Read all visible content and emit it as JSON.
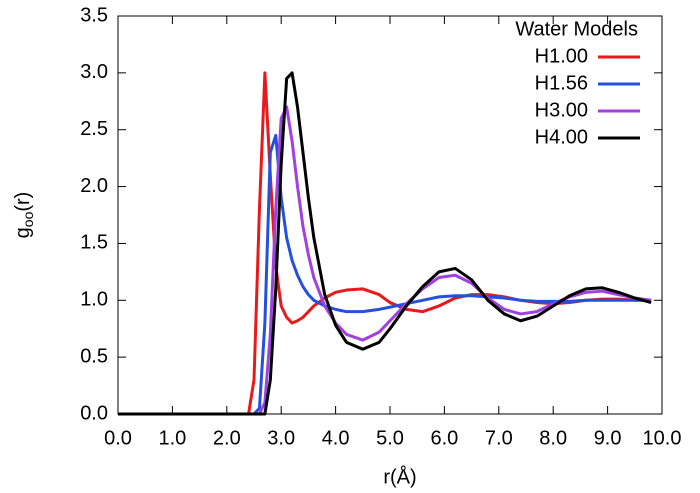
{
  "chart_data": {
    "type": "line",
    "xlabel": "r(Å)",
    "ylabel": [
      "g",
      "oo",
      "(r)"
    ],
    "legend_title": "Water Models",
    "legend": "top-right",
    "grid": false,
    "x": [
      0,
      2.3,
      2.4,
      2.5,
      2.6,
      2.7,
      2.8,
      2.9,
      3.0,
      3.1,
      3.2,
      3.3,
      3.4,
      3.5,
      3.6,
      3.8,
      4.0,
      4.2,
      4.5,
      4.8,
      5.0,
      5.3,
      5.6,
      5.9,
      6.2,
      6.5,
      6.8,
      7.1,
      7.4,
      7.7,
      8.0,
      8.3,
      8.6,
      8.9,
      9.2,
      9.5,
      9.8
    ],
    "series": [
      {
        "name": "H1.00",
        "color": "#e8191b",
        "values": [
          0,
          0,
          0,
          0.3,
          1.8,
          3.0,
          2.1,
          1.3,
          0.95,
          0.85,
          0.8,
          0.82,
          0.85,
          0.9,
          0.95,
          1.02,
          1.07,
          1.09,
          1.1,
          1.05,
          0.98,
          0.92,
          0.9,
          0.95,
          1.02,
          1.05,
          1.05,
          1.03,
          1.0,
          0.98,
          0.97,
          0.98,
          1.0,
          1.01,
          1.01,
          1.0,
          1.0
        ]
      },
      {
        "name": "H1.56",
        "color": "#2450e0",
        "values": [
          0,
          0,
          0,
          0,
          0.05,
          0.8,
          2.3,
          2.45,
          1.9,
          1.55,
          1.35,
          1.22,
          1.12,
          1.05,
          1.0,
          0.95,
          0.92,
          0.9,
          0.9,
          0.92,
          0.94,
          0.97,
          1.0,
          1.03,
          1.04,
          1.04,
          1.03,
          1.02,
          1.0,
          0.99,
          0.99,
          0.99,
          1.0,
          1.0,
          1.0,
          1.0,
          1.0
        ]
      },
      {
        "name": "H3.00",
        "color": "#a040e0",
        "values": [
          0,
          0,
          0,
          0,
          0,
          0.1,
          0.7,
          1.8,
          2.6,
          2.7,
          2.4,
          2.0,
          1.65,
          1.4,
          1.2,
          0.95,
          0.8,
          0.7,
          0.65,
          0.72,
          0.82,
          0.97,
          1.1,
          1.2,
          1.22,
          1.15,
          1.02,
          0.92,
          0.88,
          0.9,
          0.97,
          1.03,
          1.07,
          1.08,
          1.05,
          1.02,
          1.0
        ]
      },
      {
        "name": "H4.00",
        "color": "#000000",
        "values": [
          0,
          0,
          0,
          0,
          0,
          0,
          0.3,
          1.1,
          2.2,
          2.95,
          3.0,
          2.7,
          2.3,
          1.9,
          1.55,
          1.05,
          0.78,
          0.63,
          0.57,
          0.63,
          0.75,
          0.95,
          1.12,
          1.25,
          1.28,
          1.18,
          1.0,
          0.88,
          0.82,
          0.86,
          0.95,
          1.04,
          1.1,
          1.11,
          1.07,
          1.02,
          0.98
        ]
      }
    ],
    "xlim": [
      0,
      10
    ],
    "xticks": [
      {
        "value": 0,
        "label": "0.0"
      },
      {
        "value": 1,
        "label": "1.0"
      },
      {
        "value": 2,
        "label": "2.0"
      },
      {
        "value": 3,
        "label": "3.0"
      },
      {
        "value": 4,
        "label": "4.0"
      },
      {
        "value": 5,
        "label": "5.0"
      },
      {
        "value": 6,
        "label": "6.0"
      },
      {
        "value": 7,
        "label": "7.0"
      },
      {
        "value": 8,
        "label": "8.0"
      },
      {
        "value": 9,
        "label": "9.0"
      },
      {
        "value": 10,
        "label": "10.0"
      }
    ],
    "ylim": [
      0,
      3.5
    ],
    "yticks": [
      {
        "value": 0,
        "label": "0.0"
      },
      0.5,
      {
        "value": 1,
        "label": "1.0"
      },
      1.5,
      {
        "value": 2,
        "label": "2.0"
      },
      2.5,
      {
        "value": 3,
        "label": "3.0"
      },
      3.5
    ]
  }
}
